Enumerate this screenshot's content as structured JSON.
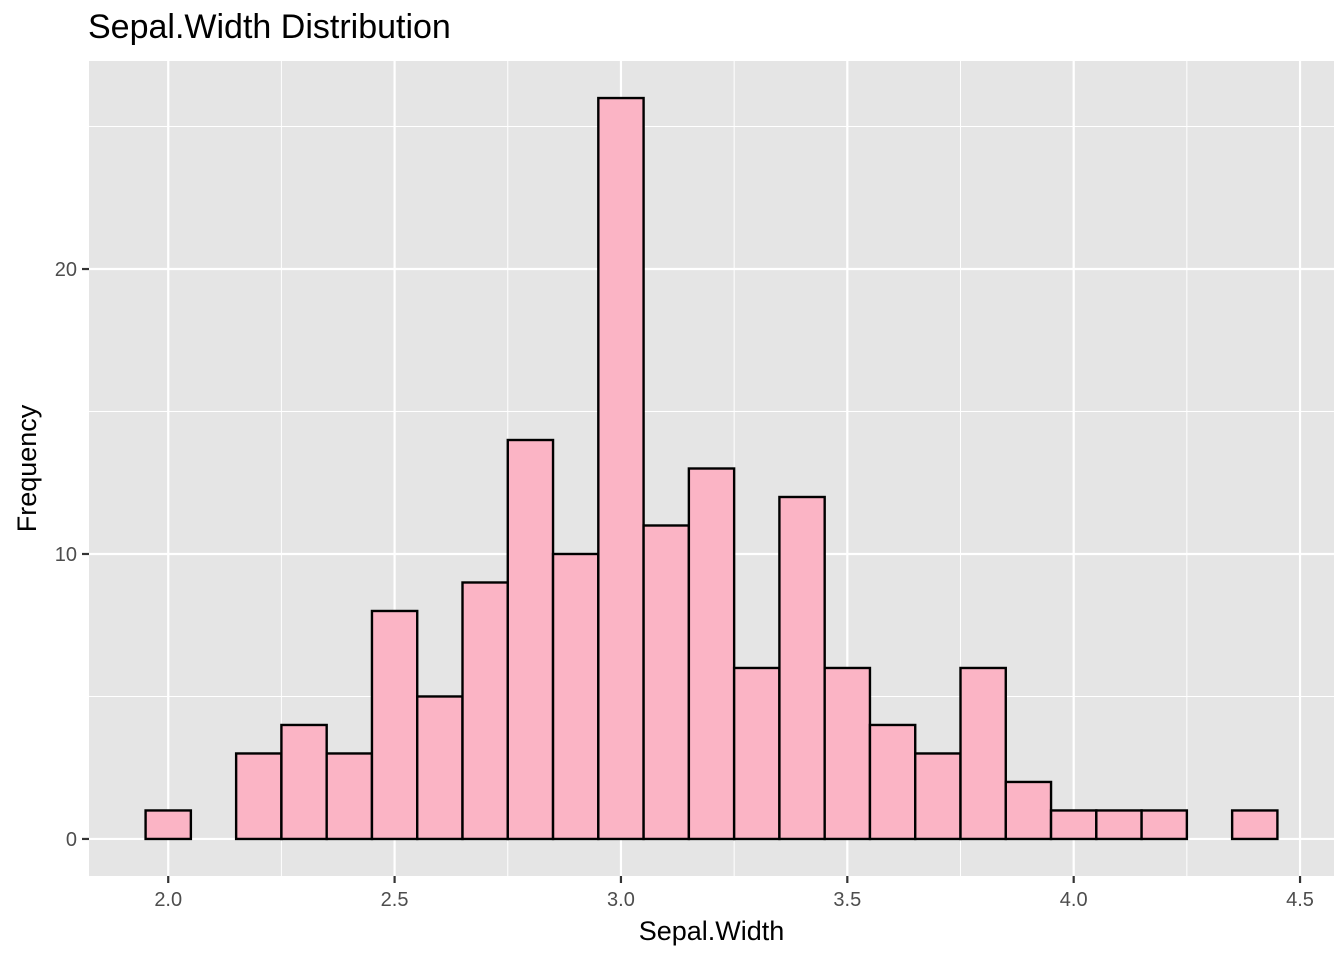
{
  "title": "Sepal.Width Distribution",
  "chart_data": {
    "type": "bar",
    "title": "Sepal.Width Distribution",
    "xlabel": "Sepal.Width",
    "ylabel": "Frequency",
    "bin_width": 0.1,
    "bins": [
      {
        "x": 2.0,
        "count": 1
      },
      {
        "x": 2.1,
        "count": 0
      },
      {
        "x": 2.2,
        "count": 3
      },
      {
        "x": 2.3,
        "count": 4
      },
      {
        "x": 2.4,
        "count": 3
      },
      {
        "x": 2.5,
        "count": 8
      },
      {
        "x": 2.6,
        "count": 5
      },
      {
        "x": 2.7,
        "count": 9
      },
      {
        "x": 2.8,
        "count": 14
      },
      {
        "x": 2.9,
        "count": 10
      },
      {
        "x": 3.0,
        "count": 26
      },
      {
        "x": 3.1,
        "count": 11
      },
      {
        "x": 3.2,
        "count": 13
      },
      {
        "x": 3.3,
        "count": 6
      },
      {
        "x": 3.4,
        "count": 12
      },
      {
        "x": 3.5,
        "count": 6
      },
      {
        "x": 3.6,
        "count": 4
      },
      {
        "x": 3.7,
        "count": 3
      },
      {
        "x": 3.8,
        "count": 6
      },
      {
        "x": 3.9,
        "count": 2
      },
      {
        "x": 4.0,
        "count": 1
      },
      {
        "x": 4.1,
        "count": 1
      },
      {
        "x": 4.2,
        "count": 1
      },
      {
        "x": 4.3,
        "count": 0
      },
      {
        "x": 4.4,
        "count": 1
      }
    ],
    "xlim": [
      1.825,
      4.575
    ],
    "ylim": [
      -1.3,
      27.3
    ],
    "x_ticks": [
      {
        "value": 2.0,
        "label": "2.0"
      },
      {
        "value": 2.5,
        "label": "2.5"
      },
      {
        "value": 3.0,
        "label": "3.0"
      },
      {
        "value": 3.5,
        "label": "3.5"
      },
      {
        "value": 4.0,
        "label": "4.0"
      },
      {
        "value": 4.5,
        "label": "4.5"
      }
    ],
    "y_ticks": [
      {
        "value": 0,
        "label": "0"
      },
      {
        "value": 10,
        "label": "10"
      },
      {
        "value": 20,
        "label": "20"
      }
    ],
    "grid": true,
    "colors": {
      "panel_background": "#e5e5e5",
      "grid_line": "#ffffff",
      "bar_fill": "#fbb4c5",
      "bar_outline": "#000000"
    }
  }
}
